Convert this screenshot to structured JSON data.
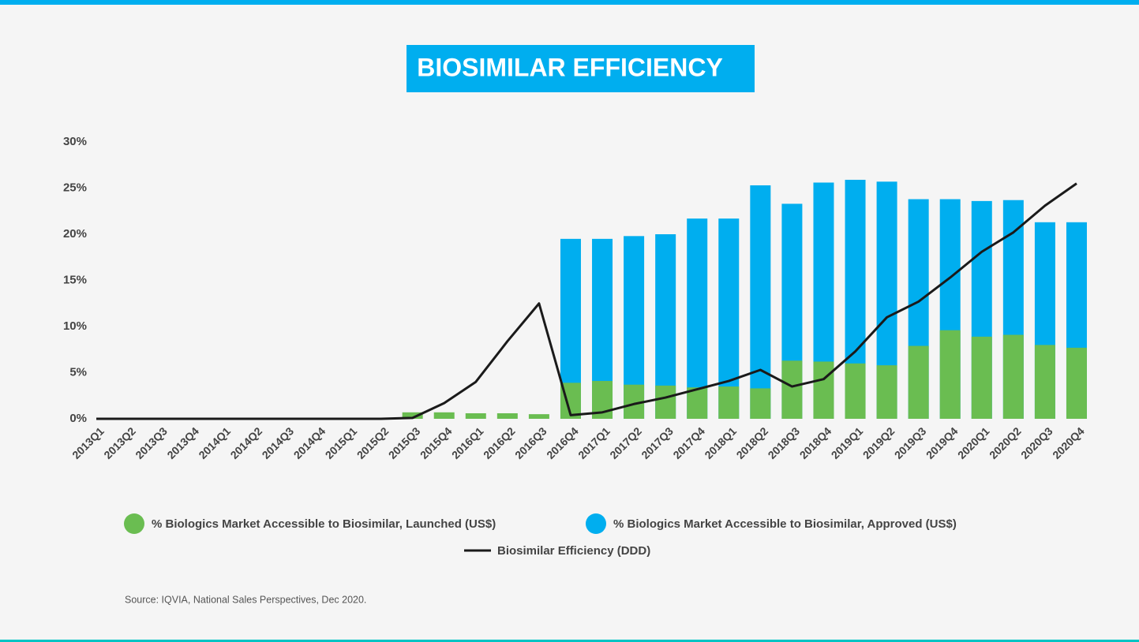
{
  "chart_data": {
    "type": "bar",
    "title": "BIOSIMILAR EFFICIENCY",
    "source": "Source: IQVIA, National Sales Perspectives, Dec 2020.",
    "categories": [
      "2013Q1",
      "2013Q2",
      "2013Q3",
      "2013Q4",
      "2014Q1",
      "2014Q2",
      "2014Q3",
      "2014Q4",
      "2015Q1",
      "2015Q2",
      "2015Q3",
      "2015Q4",
      "2016Q1",
      "2016Q2",
      "2016Q3",
      "2016Q4",
      "2017Q1",
      "2017Q2",
      "2017Q3",
      "2017Q4",
      "2018Q1",
      "2018Q2",
      "2018Q3",
      "2018Q4",
      "2019Q1",
      "2019Q2",
      "2019Q3",
      "2019Q4",
      "2020Q1",
      "2020Q2",
      "2020Q3",
      "2020Q4"
    ],
    "series": [
      {
        "name": "% Biologics Market Accessible to Biosimilar, Approved (US$)",
        "type": "bar",
        "color": "#00aeef",
        "values": [
          null,
          null,
          null,
          null,
          null,
          null,
          null,
          null,
          null,
          null,
          null,
          null,
          null,
          null,
          null,
          19.5,
          19.5,
          19.8,
          20.0,
          21.7,
          21.7,
          25.3,
          23.3,
          25.6,
          25.9,
          25.7,
          23.8,
          23.8,
          23.6,
          23.7,
          21.3,
          21.3
        ]
      },
      {
        "name": "% Biologics Market Accessible to Biosimilar, Launched (US$)",
        "type": "bar",
        "color": "#6abd51",
        "values": [
          0,
          0,
          0,
          0,
          0,
          0,
          0,
          0,
          0,
          0,
          0.7,
          0.7,
          0.6,
          0.6,
          0.5,
          3.9,
          4.1,
          3.7,
          3.6,
          3.4,
          3.5,
          3.3,
          6.3,
          6.2,
          6.0,
          5.8,
          7.9,
          9.6,
          8.9,
          9.1,
          8.0,
          7.7
        ]
      },
      {
        "name": "Biosimilar Efficiency (DDD)",
        "type": "line",
        "color": "#1a1a1a",
        "values": [
          0,
          0,
          0,
          0,
          0,
          0,
          0,
          0,
          0,
          0,
          0.1,
          1.7,
          4.0,
          8.4,
          12.5,
          0.4,
          0.7,
          1.6,
          2.3,
          3.2,
          4.1,
          5.3,
          3.5,
          4.3,
          7.3,
          11.0,
          12.7,
          15.3,
          18.1,
          20.2,
          23.1,
          25.5
        ]
      }
    ],
    "ylim": [
      0,
      30
    ],
    "yticks": [
      {
        "value": 0,
        "label": "0%"
      },
      {
        "value": 5,
        "label": "5%"
      },
      {
        "value": 10,
        "label": "10%"
      },
      {
        "value": 15,
        "label": "15%"
      },
      {
        "value": 20,
        "label": "20%"
      },
      {
        "value": 25,
        "label": "25%"
      },
      {
        "value": 30,
        "label": "30%"
      }
    ],
    "stacked": false
  }
}
